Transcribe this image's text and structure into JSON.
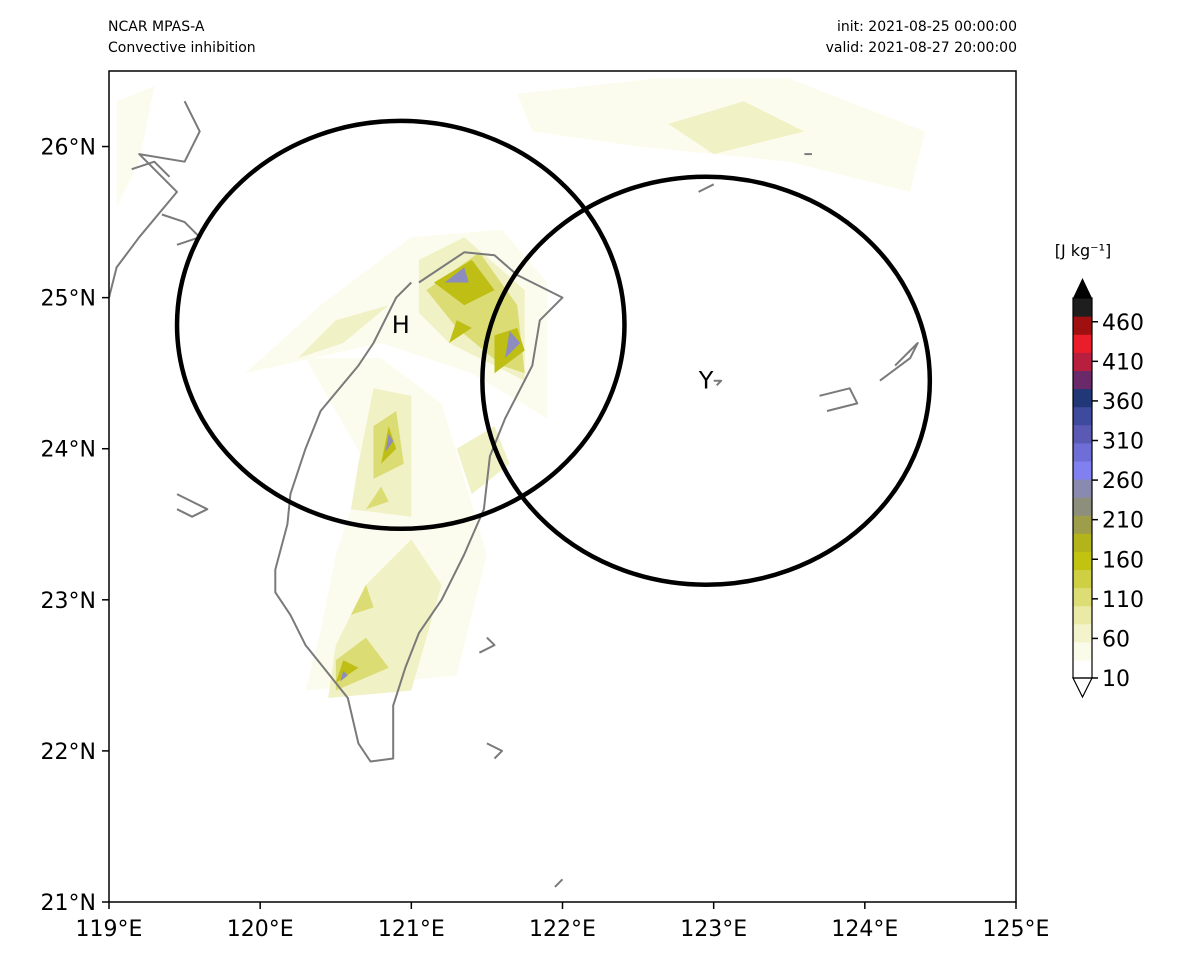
{
  "header": {
    "model": "NCAR MPAS-A",
    "field": "Convective inhibition",
    "init": "init: 2021-08-25 00:00:00",
    "valid": "valid: 2021-08-27 20:00:00"
  },
  "map": {
    "extent": {
      "lon_min": 119,
      "lon_max": 125,
      "lat_min": 21,
      "lat_max": 26.5
    },
    "lon_ticks": [
      {
        "value": 119,
        "label": "119°E"
      },
      {
        "value": 120,
        "label": "120°E"
      },
      {
        "value": 121,
        "label": "121°E"
      },
      {
        "value": 122,
        "label": "122°E"
      },
      {
        "value": 123,
        "label": "123°E"
      },
      {
        "value": 124,
        "label": "124°E"
      },
      {
        "value": 125,
        "label": "125°E"
      }
    ],
    "lat_ticks": [
      {
        "value": 21,
        "label": "21°N"
      },
      {
        "value": 22,
        "label": "22°N"
      },
      {
        "value": 23,
        "label": "23°N"
      },
      {
        "value": 24,
        "label": "24°N"
      },
      {
        "value": 25,
        "label": "25°N"
      },
      {
        "value": 26,
        "label": "26°N"
      }
    ],
    "coastline_color": "#7a7a7a",
    "markers": [
      {
        "label": "H",
        "lon": 120.93,
        "lat": 24.82,
        "radius_lon": 1.48,
        "radius_lat": 1.35
      },
      {
        "label": "Y",
        "lon": 122.95,
        "lat": 24.45,
        "radius_lon": 1.48,
        "radius_lat": 1.35
      }
    ]
  },
  "colorbar": {
    "unit_label": "[J kg⁻¹]",
    "tick_labels": [
      "10",
      "60",
      "110",
      "160",
      "210",
      "260",
      "310",
      "360",
      "410",
      "460"
    ],
    "min": 10,
    "max": 490,
    "extend": "both",
    "colors": [
      "#ffffff",
      "#fbfbea",
      "#f4f4cc",
      "#eaeaa6",
      "#dddd76",
      "#cfcf44",
      "#c2c211",
      "#b3b31a",
      "#9e9e4a",
      "#8e8e7c",
      "#8a8ab0",
      "#8080f0",
      "#6e6ed6",
      "#5a5ab4",
      "#3e4a9e",
      "#203878",
      "#6a2a6a",
      "#b81e3e",
      "#ea1e2a",
      "#a01010",
      "#1e1e1e"
    ]
  },
  "contours": [
    {
      "level": 10,
      "color": "#fcfcee",
      "polys": [
        [
          [
            120.3,
            22.4
          ],
          [
            121.3,
            22.5
          ],
          [
            121.5,
            23.3
          ],
          [
            121.2,
            24.3
          ],
          [
            120.8,
            24.6
          ],
          [
            120.3,
            24.6
          ],
          [
            120.7,
            23.9
          ],
          [
            120.5,
            23.3
          ],
          [
            120.4,
            22.8
          ]
        ],
        [
          [
            119.9,
            24.5
          ],
          [
            120.4,
            24.95
          ],
          [
            121.0,
            25.4
          ],
          [
            121.6,
            25.45
          ],
          [
            121.9,
            25.1
          ],
          [
            121.9,
            24.2
          ],
          [
            121.4,
            24.5
          ],
          [
            120.8,
            24.7
          ]
        ],
        [
          [
            121.7,
            26.35
          ],
          [
            122.6,
            26.45
          ],
          [
            123.5,
            26.45
          ],
          [
            124.4,
            26.1
          ],
          [
            124.3,
            25.7
          ],
          [
            123.5,
            25.9
          ],
          [
            122.5,
            26.0
          ],
          [
            121.8,
            26.1
          ]
        ],
        [
          [
            119.05,
            26.3
          ],
          [
            119.3,
            26.4
          ],
          [
            119.2,
            25.9
          ],
          [
            119.05,
            25.6
          ]
        ]
      ]
    },
    {
      "level": 60,
      "color": "#f1f1c6",
      "polys": [
        [
          [
            120.45,
            22.35
          ],
          [
            121.0,
            22.4
          ],
          [
            121.2,
            23.1
          ],
          [
            121.0,
            23.4
          ],
          [
            120.7,
            23.1
          ],
          [
            120.5,
            22.7
          ]
        ],
        [
          [
            120.6,
            23.6
          ],
          [
            121.0,
            23.55
          ],
          [
            121.0,
            24.35
          ],
          [
            120.75,
            24.4
          ],
          [
            120.65,
            23.9
          ]
        ],
        [
          [
            121.05,
            25.25
          ],
          [
            121.35,
            25.4
          ],
          [
            121.75,
            25.05
          ],
          [
            121.75,
            24.45
          ],
          [
            121.55,
            24.55
          ],
          [
            121.25,
            24.7
          ],
          [
            121.05,
            24.9
          ]
        ],
        [
          [
            121.4,
            23.7
          ],
          [
            121.65,
            23.9
          ],
          [
            121.55,
            24.15
          ],
          [
            121.3,
            24.0
          ]
        ],
        [
          [
            120.25,
            24.6
          ],
          [
            120.5,
            24.85
          ],
          [
            120.85,
            24.95
          ],
          [
            120.55,
            24.7
          ]
        ],
        [
          [
            122.7,
            26.15
          ],
          [
            123.2,
            26.3
          ],
          [
            123.6,
            26.1
          ],
          [
            123.0,
            25.95
          ]
        ]
      ]
    },
    {
      "level": 110,
      "color": "#dcdc74",
      "polys": [
        [
          [
            120.5,
            22.4
          ],
          [
            120.85,
            22.55
          ],
          [
            120.7,
            22.75
          ],
          [
            120.5,
            22.6
          ]
        ],
        [
          [
            120.75,
            23.8
          ],
          [
            120.95,
            23.9
          ],
          [
            120.9,
            24.25
          ],
          [
            120.75,
            24.15
          ]
        ],
        [
          [
            121.1,
            25.05
          ],
          [
            121.45,
            25.3
          ],
          [
            121.7,
            24.95
          ],
          [
            121.75,
            24.5
          ],
          [
            121.6,
            24.55
          ],
          [
            121.3,
            24.8
          ]
        ],
        [
          [
            120.6,
            22.9
          ],
          [
            120.75,
            22.95
          ],
          [
            120.7,
            23.1
          ]
        ],
        [
          [
            120.7,
            23.6
          ],
          [
            120.85,
            23.65
          ],
          [
            120.8,
            23.75
          ]
        ]
      ]
    },
    {
      "level": 160,
      "color": "#bebe14",
      "polys": [
        [
          [
            121.15,
            25.1
          ],
          [
            121.4,
            25.25
          ],
          [
            121.55,
            25.05
          ],
          [
            121.35,
            24.95
          ]
        ],
        [
          [
            121.55,
            24.5
          ],
          [
            121.75,
            24.65
          ],
          [
            121.7,
            24.8
          ],
          [
            121.55,
            24.75
          ]
        ],
        [
          [
            120.8,
            23.9
          ],
          [
            120.9,
            24.0
          ],
          [
            120.85,
            24.15
          ]
        ],
        [
          [
            120.5,
            22.45
          ],
          [
            120.65,
            22.55
          ],
          [
            120.55,
            22.6
          ]
        ],
        [
          [
            121.25,
            24.7
          ],
          [
            121.4,
            24.8
          ],
          [
            121.3,
            24.85
          ]
        ]
      ]
    },
    {
      "level": 230,
      "color": "#8c8cbe",
      "polys": [
        [
          [
            121.22,
            25.1
          ],
          [
            121.35,
            25.2
          ],
          [
            121.38,
            25.1
          ]
        ],
        [
          [
            121.62,
            24.6
          ],
          [
            121.72,
            24.7
          ],
          [
            121.65,
            24.78
          ]
        ],
        [
          [
            120.83,
            23.98
          ],
          [
            120.88,
            24.05
          ],
          [
            120.85,
            24.1
          ]
        ],
        [
          [
            120.53,
            22.46
          ],
          [
            120.58,
            22.5
          ],
          [
            120.55,
            22.53
          ]
        ]
      ]
    }
  ],
  "coastlines": [
    [
      [
        121.0,
        25.1
      ],
      [
        120.9,
        25.0
      ],
      [
        120.75,
        24.7
      ],
      [
        120.65,
        24.55
      ],
      [
        120.4,
        24.25
      ],
      [
        120.3,
        24.0
      ],
      [
        120.2,
        23.7
      ],
      [
        120.18,
        23.5
      ],
      [
        120.1,
        23.2
      ],
      [
        120.1,
        23.05
      ],
      [
        120.2,
        22.9
      ],
      [
        120.3,
        22.7
      ],
      [
        120.42,
        22.55
      ],
      [
        120.58,
        22.35
      ],
      [
        120.65,
        22.05
      ],
      [
        120.73,
        21.93
      ],
      [
        120.88,
        21.95
      ],
      [
        120.88,
        22.3
      ],
      [
        120.96,
        22.55
      ],
      [
        121.05,
        22.78
      ],
      [
        121.2,
        23.0
      ],
      [
        121.35,
        23.3
      ],
      [
        121.48,
        23.6
      ],
      [
        121.52,
        23.95
      ],
      [
        121.62,
        24.2
      ],
      [
        121.8,
        24.55
      ],
      [
        121.85,
        24.85
      ],
      [
        122.0,
        25.0
      ],
      [
        121.7,
        25.15
      ],
      [
        121.55,
        25.28
      ],
      [
        121.35,
        25.3
      ],
      [
        121.05,
        25.1
      ]
    ],
    [
      [
        119.5,
        26.3
      ],
      [
        119.6,
        26.1
      ],
      [
        119.5,
        25.9
      ],
      [
        119.2,
        25.95
      ],
      [
        119.45,
        25.7
      ],
      [
        119.2,
        25.4
      ],
      [
        119.05,
        25.2
      ],
      [
        119.0,
        25.0
      ]
    ],
    [
      [
        119.15,
        25.85
      ],
      [
        119.3,
        25.9
      ],
      [
        119.4,
        25.8
      ]
    ],
    [
      [
        119.35,
        25.55
      ],
      [
        119.5,
        25.5
      ],
      [
        119.6,
        25.4
      ],
      [
        119.45,
        25.35
      ]
    ],
    [
      [
        119.45,
        23.7
      ],
      [
        119.55,
        23.65
      ],
      [
        119.65,
        23.6
      ],
      [
        119.55,
        23.55
      ],
      [
        119.45,
        23.6
      ]
    ],
    [
      [
        121.45,
        22.65
      ],
      [
        121.55,
        22.7
      ],
      [
        121.5,
        22.75
      ]
    ],
    [
      [
        121.5,
        22.05
      ],
      [
        121.6,
        22.0
      ],
      [
        121.55,
        21.95
      ]
    ],
    [
      [
        123.7,
        24.35
      ],
      [
        123.9,
        24.4
      ],
      [
        123.95,
        24.3
      ],
      [
        123.75,
        24.25
      ]
    ],
    [
      [
        124.1,
        24.45
      ],
      [
        124.3,
        24.6
      ],
      [
        124.35,
        24.7
      ],
      [
        124.2,
        24.55
      ]
    ],
    [
      [
        123.0,
        24.45
      ],
      [
        123.05,
        24.45
      ],
      [
        123.02,
        24.42
      ]
    ],
    [
      [
        123.6,
        25.95
      ],
      [
        123.65,
        25.95
      ]
    ],
    [
      [
        122.9,
        25.7
      ],
      [
        123.0,
        25.75
      ]
    ],
    [
      [
        121.95,
        21.1
      ],
      [
        122.0,
        21.15
      ]
    ]
  ]
}
